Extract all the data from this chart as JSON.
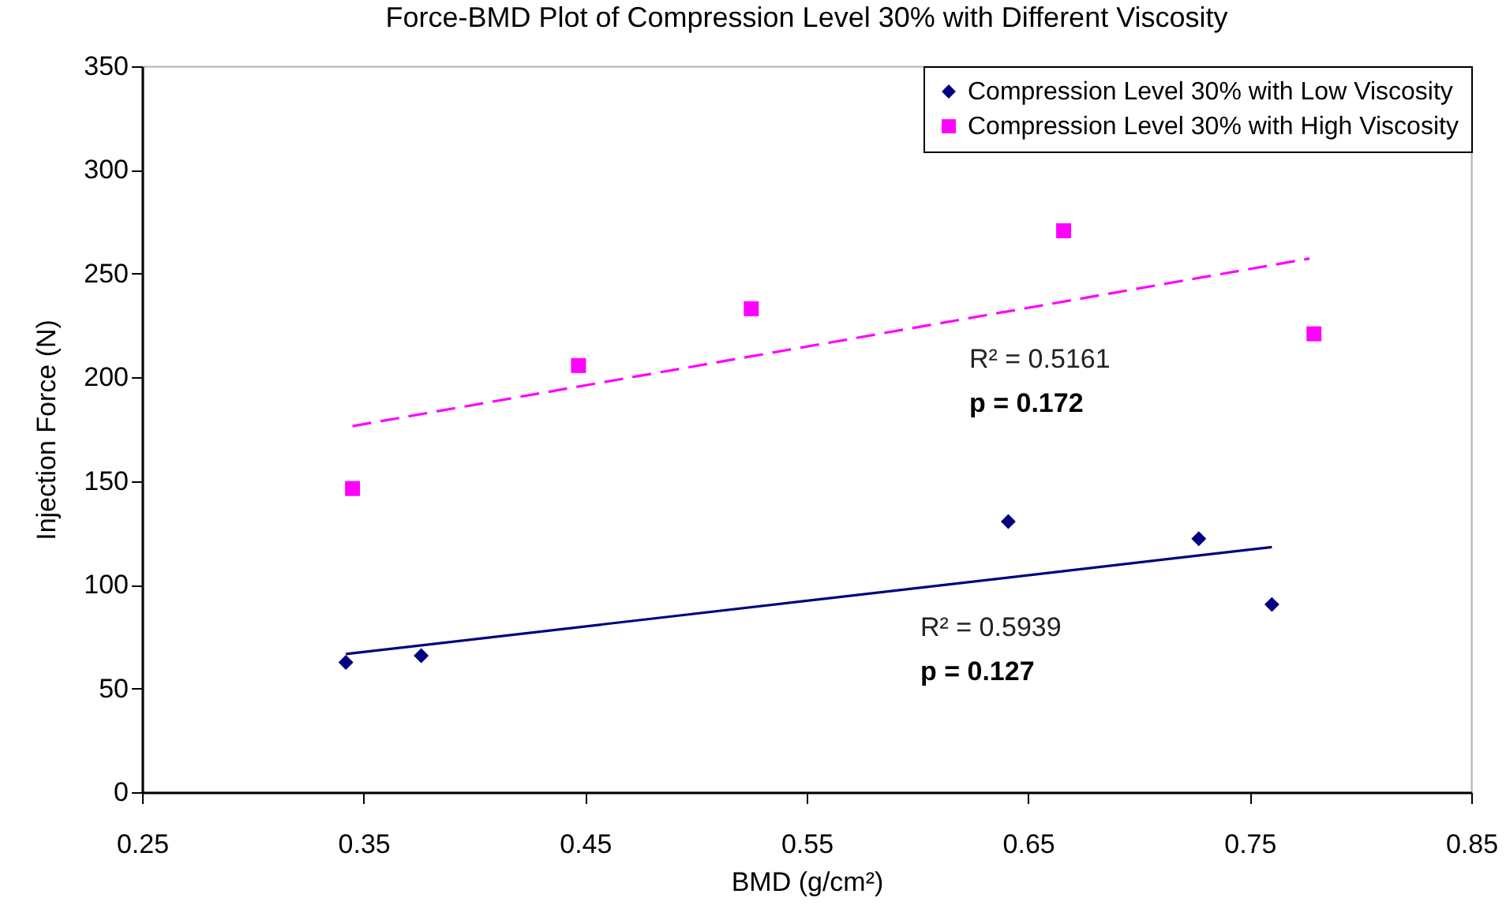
{
  "chart_data": {
    "type": "scatter",
    "title": "Force-BMD Plot of Compression Level 30% with Different Viscosity",
    "xlabel": "BMD (g/cm²)",
    "ylabel": "Injection Force (N)",
    "series": [
      {
        "name": "Compression Level 30% with Low Viscosity",
        "color": "#000080",
        "marker": "diamond",
        "x": [
          0.342,
          0.376,
          0.641,
          0.727,
          0.76
        ],
        "values": [
          62.6,
          65.8,
          130.5,
          122.2,
          90.5
        ]
      },
      {
        "name": "Compression Level 30% with High Viscosity",
        "color": "#ff00ff",
        "marker": "square",
        "x": [
          0.345,
          0.447,
          0.525,
          0.666,
          0.779
        ],
        "values": [
          146.4,
          205.7,
          233.1,
          270.7,
          221
        ]
      },
      {
        "type": "line",
        "color": "#000080",
        "line_style": "solid",
        "x": [
          0.342,
          0.76
        ],
        "values": [
          66.6,
          118.2
        ]
      },
      {
        "type": "line",
        "color": "#ff00ff",
        "line_style": "dashed",
        "x": [
          0.345,
          0.777
        ],
        "values": [
          176.5,
          257.3
        ]
      }
    ],
    "xlim": [
      0.25,
      0.85
    ],
    "xticks": [
      0.25,
      0.35,
      0.45,
      0.55,
      0.65,
      0.75,
      0.85
    ],
    "ylim": [
      0,
      350
    ],
    "yticks": [
      0,
      50,
      100,
      150,
      200,
      250,
      300,
      350
    ],
    "grid": false,
    "legend": "top right",
    "annotations": [
      "R² = 0.5161",
      "p = 0.172",
      "R² = 0.5939",
      "p = 0.127"
    ]
  }
}
